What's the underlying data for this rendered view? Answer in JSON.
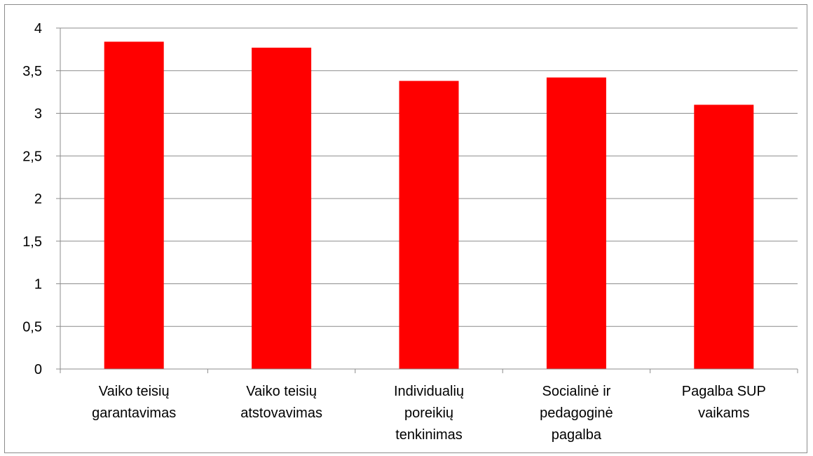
{
  "chart_data": {
    "type": "bar",
    "categories": [
      [
        "Vaiko teisių",
        "garantavimas"
      ],
      [
        "Vaiko teisių",
        "atstovavimas"
      ],
      [
        "Individualių",
        "poreikių",
        "tenkinimas"
      ],
      [
        "Socialinė ir",
        "pedagoginė",
        "pagalba"
      ],
      [
        "Pagalba SUP",
        "vaikams"
      ]
    ],
    "values": [
      3.84,
      3.77,
      3.38,
      3.42,
      3.1
    ],
    "ylim": [
      0,
      4
    ],
    "yticks": [
      0,
      0.5,
      1,
      1.5,
      2,
      2.5,
      3,
      3.5,
      4
    ],
    "ytick_labels": [
      "0",
      "0,5",
      "1",
      "1,5",
      "2",
      "2,5",
      "3",
      "3,5",
      "4"
    ],
    "grid": true,
    "legend": "none",
    "colors": {
      "bar": "#ff0000",
      "grid": "#8c8c8c",
      "axis": "#8c8c8c",
      "text": "#000000"
    }
  }
}
